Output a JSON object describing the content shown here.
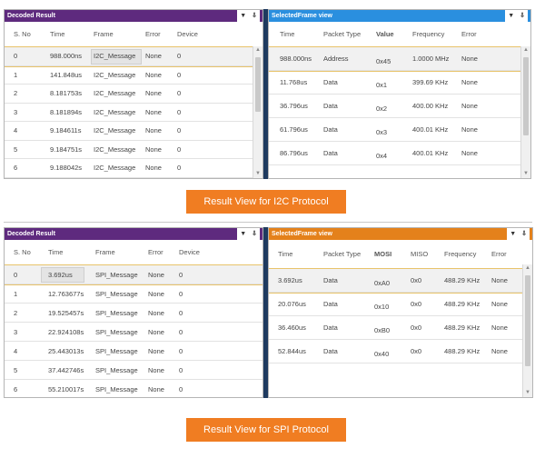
{
  "colors": {
    "decoded_header": "#5e2a7e",
    "i2c_frame_header": "#2a8fdf",
    "spi_frame_header": "#e4811b",
    "caption_bg": "#f07d22",
    "selection_outline": "#e8c36a"
  },
  "icons": {
    "dropdown": "chevron-down-icon",
    "pin": "pin-icon",
    "scroll_up": "scroll-up-arrow-icon",
    "scroll_down": "scroll-down-arrow-icon"
  },
  "i2c": {
    "decoded": {
      "title": "Decoded Result",
      "columns": [
        "S. No",
        "Time",
        "Frame",
        "Error",
        "Device"
      ],
      "rows": [
        [
          "0",
          "988.000ns",
          "I2C_Message",
          "None",
          "0"
        ],
        [
          "1",
          "141.848us",
          "I2C_Message",
          "None",
          "0"
        ],
        [
          "2",
          "8.181753s",
          "I2C_Message",
          "None",
          "0"
        ],
        [
          "3",
          "8.181894s",
          "I2C_Message",
          "None",
          "0"
        ],
        [
          "4",
          "9.184611s",
          "I2C_Message",
          "None",
          "0"
        ],
        [
          "5",
          "9.184751s",
          "I2C_Message",
          "None",
          "0"
        ],
        [
          "6",
          "9.188042s",
          "I2C_Message",
          "None",
          "0"
        ]
      ]
    },
    "frame": {
      "title": "SelectedFrame view",
      "columns": [
        "Time",
        "Packet Type",
        "Value",
        "Frequency",
        "Error"
      ],
      "rows": [
        [
          "988.000ns",
          "Address",
          "0x45",
          "1.0000 MHz",
          "None"
        ],
        [
          "11.768us",
          "Data",
          "0x1",
          "399.69 KHz",
          "None"
        ],
        [
          "36.796us",
          "Data",
          "0x2",
          "400.00 KHz",
          "None"
        ],
        [
          "61.796us",
          "Data",
          "0x3",
          "400.01 KHz",
          "None"
        ],
        [
          "86.796us",
          "Data",
          "0x4",
          "400.01 KHz",
          "None"
        ]
      ]
    },
    "caption": "Result View for I2C Protocol"
  },
  "spi": {
    "decoded": {
      "title": "Decoded Result",
      "columns": [
        "S. No",
        "Time",
        "Frame",
        "Error",
        "Device"
      ],
      "rows": [
        [
          "0",
          "3.692us",
          "SPI_Message",
          "None",
          "0"
        ],
        [
          "1",
          "12.763677s",
          "SPI_Message",
          "None",
          "0"
        ],
        [
          "2",
          "19.525457s",
          "SPI_Message",
          "None",
          "0"
        ],
        [
          "3",
          "22.924108s",
          "SPI_Message",
          "None",
          "0"
        ],
        [
          "4",
          "25.443013s",
          "SPI_Message",
          "None",
          "0"
        ],
        [
          "5",
          "37.442746s",
          "SPI_Message",
          "None",
          "0"
        ],
        [
          "6",
          "55.210017s",
          "SPI_Message",
          "None",
          "0"
        ]
      ]
    },
    "frame": {
      "title": "SelectedFrame view",
      "columns": [
        "Time",
        "Packet Type",
        "MOSI",
        "MISO",
        "Frequency",
        "Error"
      ],
      "rows": [
        [
          "3.692us",
          "Data",
          "0xA0",
          "0x0",
          "488.29 KHz",
          "None"
        ],
        [
          "20.076us",
          "Data",
          "0x10",
          "0x0",
          "488.29 KHz",
          "None"
        ],
        [
          "36.460us",
          "Data",
          "0xB0",
          "0x0",
          "488.29 KHz",
          "None"
        ],
        [
          "52.844us",
          "Data",
          "0x40",
          "0x0",
          "488.29 KHz",
          "None"
        ]
      ]
    },
    "caption": "Result View for SPI Protocol"
  }
}
